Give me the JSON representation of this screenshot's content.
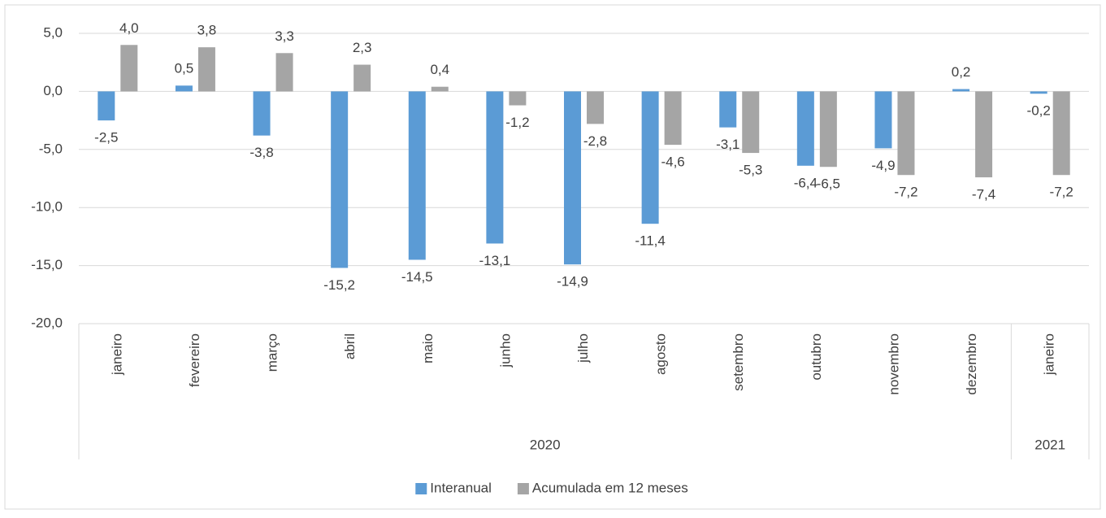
{
  "chart_data": {
    "type": "bar",
    "categories": [
      "janeiro",
      "fevereiro",
      "março",
      "abril",
      "maio",
      "junho",
      "julho",
      "agosto",
      "setembro",
      "outubro",
      "novembro",
      "dezembro",
      "janeiro"
    ],
    "groups": [
      {
        "label": "2020",
        "size": 12
      },
      {
        "label": "2021",
        "size": 1
      }
    ],
    "series": [
      {
        "name": "Interanual",
        "color": "#5b9bd5",
        "values": [
          -2.5,
          0.5,
          -3.8,
          -15.2,
          -14.5,
          -13.1,
          -14.9,
          -11.4,
          -3.1,
          -6.4,
          -4.9,
          0.2,
          -0.2
        ],
        "value_labels": [
          "-2,5",
          "0,5",
          "-3,8",
          "-15,2",
          "-14,5",
          "-13,1",
          "-14,9",
          "-11,4",
          "-3,1",
          "-6,4",
          "-4,9",
          "0,2",
          "-0,2"
        ]
      },
      {
        "name": "Acumulada em 12 meses",
        "color": "#a5a5a5",
        "values": [
          4.0,
          3.8,
          3.3,
          2.3,
          0.4,
          -1.2,
          -2.8,
          -4.6,
          -5.3,
          -6.5,
          -7.2,
          -7.4,
          -7.2
        ],
        "value_labels": [
          "4,0",
          "3,8",
          "3,3",
          "2,3",
          "0,4",
          "-1,2",
          "-2,8",
          "-4,6",
          "-5,3",
          "-6,5",
          "-7,2",
          "-7,4",
          "-7,2"
        ]
      }
    ],
    "ylim": [
      -20,
      5
    ],
    "yticks": [
      {
        "value": -20,
        "label": "-20,0"
      },
      {
        "value": -15,
        "label": "-15,0"
      },
      {
        "value": -10,
        "label": "-10,0"
      },
      {
        "value": -5,
        "label": "-5,0"
      },
      {
        "value": 0,
        "label": "0,0"
      },
      {
        "value": 5,
        "label": "5,0"
      }
    ],
    "grid": true,
    "legend": "bottom"
  }
}
